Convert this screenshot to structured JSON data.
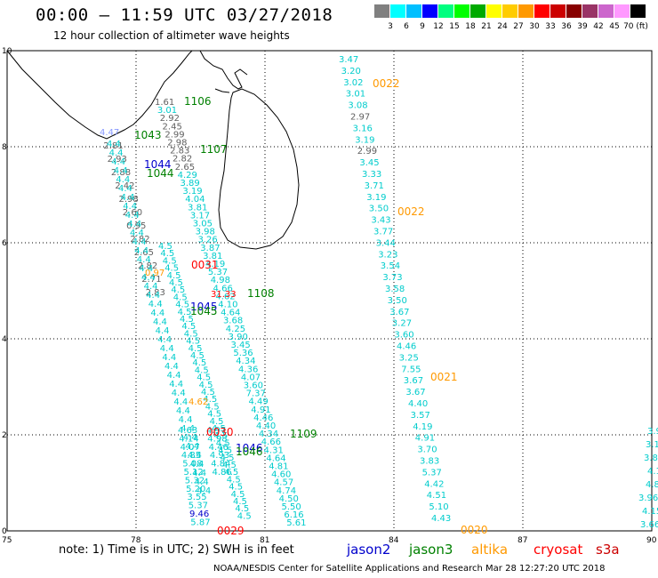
{
  "header": {
    "title": "00:00 – 11:59 UTC 03/27/2018",
    "subtitle": "12 hour collection of altimeter wave heights"
  },
  "colorbar": {
    "colors": [
      "#808080",
      "#00ffff",
      "#00bfff",
      "#0000ff",
      "#00ff7f",
      "#00ff00",
      "#00aa00",
      "#ffff00",
      "#ffcc00",
      "#ff9900",
      "#ff0000",
      "#cc0000",
      "#880000",
      "#993366",
      "#cc66cc",
      "#ff99ff",
      "#000000"
    ],
    "labels": [
      "3",
      "6",
      "9",
      "12",
      "15",
      "18",
      "21",
      "24",
      "27",
      "30",
      "33",
      "36",
      "39",
      "42",
      "45",
      "70 (ft)"
    ]
  },
  "map": {
    "y_ticks": [
      "0",
      "2",
      "4",
      "6",
      "8",
      "10"
    ],
    "x_ticks": [
      "75",
      "78",
      "81",
      "84",
      "87",
      "90"
    ],
    "lon_range": [
      75,
      90
    ],
    "lat_range": [
      0,
      10
    ]
  },
  "wave_labels": {
    "a": [
      "4.47",
      "2.81",
      "2.93",
      "2.88",
      "2.42",
      "2.98",
      "2.60",
      "0.95",
      "2.82",
      "2.65",
      "2.82",
      "2.71",
      "2.83"
    ],
    "b": [
      "1.61",
      "3.01",
      "2.92",
      "2.45",
      "2.99",
      "2.98",
      "2.83",
      "2.82",
      "2.65",
      "4.29",
      "3.89",
      "3.19",
      "4.04",
      "3.81",
      "3.17",
      "3.05",
      "3.98",
      "3.26",
      "3.87",
      "3.81",
      "4.19",
      "5.37",
      "4.98",
      "4.66",
      "4.62",
      "4.10",
      "4.64",
      "3.68",
      "4.25",
      "3.90",
      "3.45",
      "5.36",
      "4.34",
      "4.36",
      "4.07",
      "3.60",
      "7.37",
      "4.49",
      "4.91",
      "4.46",
      "4.40",
      "4.34",
      "4.66",
      "4.31",
      "4.64",
      "4.81",
      "4.60",
      "4.57",
      "4.74",
      "4.50",
      "5.50",
      "6.16",
      "5.61"
    ],
    "c": [
      "4.63",
      "4.14",
      "4.07",
      "4.85",
      "5.08",
      "5.12",
      "5.32",
      "5.20",
      "3.55",
      "5.37",
      "9.46",
      "5.87",
      "4.97",
      "4.98",
      "4.46",
      "4.93",
      "4.84",
      "4.86"
    ],
    "d": [
      "3.47",
      "3.20",
      "3.02",
      "3.01",
      "3.08",
      "2.97",
      "3.16",
      "3.19",
      "2.99",
      "3.45",
      "3.33",
      "3.71",
      "3.19",
      "3.50",
      "3.43",
      "3.77",
      "3.44",
      "3.23",
      "3.54",
      "3.73",
      "3.58",
      "3.50",
      "3.67",
      "3.27",
      "3.60",
      "4.46",
      "3.25",
      "7.55",
      "3.67",
      "3.67",
      "4.40",
      "3.57",
      "4.19",
      "4.91",
      "3.70",
      "3.83",
      "5.37",
      "4.42",
      "4.51",
      "5.10",
      "4.43"
    ],
    "e": [
      "3.9",
      "3.1",
      "3.8",
      "4.1",
      "4.8",
      "3.96",
      "4.15",
      "3.66"
    ],
    "f": [
      "0.97",
      "31.33",
      "4.62"
    ]
  },
  "orbit_labels": [
    {
      "text": "1106",
      "color": "#008000"
    },
    {
      "text": "1043",
      "color": "#008000"
    },
    {
      "text": "1044",
      "color": "#0000cc"
    },
    {
      "text": "1044",
      "color": "#008000"
    },
    {
      "text": "1107",
      "color": "#008000"
    },
    {
      "text": "0022",
      "color": "#ff9900"
    },
    {
      "text": "0022",
      "color": "#ff9900"
    },
    {
      "text": "0031",
      "color": "#ff0000"
    },
    {
      "text": "1108",
      "color": "#008000"
    },
    {
      "text": "1045",
      "color": "#0000cc"
    },
    {
      "text": "1045",
      "color": "#008000"
    },
    {
      "text": "0021",
      "color": "#ff9900"
    },
    {
      "text": "0030",
      "color": "#ff0000"
    },
    {
      "text": "1109",
      "color": "#008000"
    },
    {
      "text": "1046",
      "color": "#0000cc"
    },
    {
      "text": "1046",
      "color": "#008000"
    },
    {
      "text": "0029",
      "color": "#ff0000"
    },
    {
      "text": "0020",
      "color": "#ff9900"
    }
  ],
  "footer": {
    "note": "note:  1) Time is in UTC;  2) SWH is in feet",
    "legend": [
      {
        "label": "jason2",
        "color": "#0000cc"
      },
      {
        "label": "jason3",
        "color": "#008000"
      },
      {
        "label": "altika",
        "color": "#ff9900"
      },
      {
        "label": "cryosat",
        "color": "#ff0000"
      },
      {
        "label": "s3a",
        "color": "#cc0000"
      }
    ],
    "credit": "NOAA/NESDIS Center for Satellite Applications and Research    Mar 28 12:27:20 UTC 2018"
  }
}
